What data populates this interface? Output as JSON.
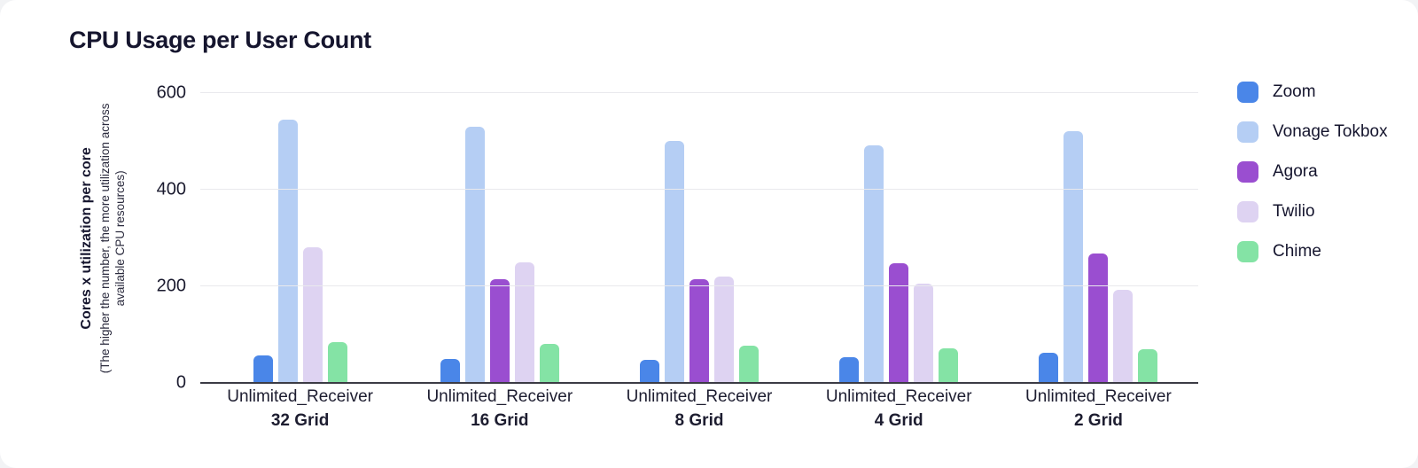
{
  "chart_data": {
    "type": "bar",
    "title": "CPU Usage per User Count",
    "ylabel": "Cores x utilization per core",
    "ylabel_note": "(The higher the number, the more utilization across available CPU resources)",
    "ylim": [
      0,
      600
    ],
    "yticks": [
      0,
      200,
      400,
      600
    ],
    "grid": true,
    "legend_position": "right",
    "categories": [
      {
        "line1": "Unlimited_Receiver",
        "line2": "32 Grid"
      },
      {
        "line1": "Unlimited_Receiver",
        "line2": "16 Grid"
      },
      {
        "line1": "Unlimited_Receiver",
        "line2": "8 Grid"
      },
      {
        "line1": "Unlimited_Receiver",
        "line2": "4 Grid"
      },
      {
        "line1": "Unlimited_Receiver",
        "line2": "2 Grid"
      }
    ],
    "series": [
      {
        "name": "Zoom",
        "color": "#4A86E8",
        "values": [
          57,
          50,
          47,
          54,
          62
        ]
      },
      {
        "name": "Vonage Tokbox",
        "color": "#B5CEF4",
        "values": [
          545,
          530,
          500,
          492,
          522
        ]
      },
      {
        "name": "Agora",
        "color": "#9A4ED0",
        "values": [
          null,
          215,
          215,
          247,
          268
        ]
      },
      {
        "name": "Twilio",
        "color": "#DED3F2",
        "values": [
          281,
          250,
          220,
          206,
          192
        ]
      },
      {
        "name": "Chime",
        "color": "#84E3A5",
        "values": [
          85,
          80,
          77,
          72,
          70
        ]
      }
    ],
    "colors": {
      "title_text": "#15152E",
      "axis_text": "#1A1A2E",
      "gridline": "#E9E9ED",
      "baseline": "#3C3C45",
      "card_background": "#FFFFFF"
    }
  }
}
